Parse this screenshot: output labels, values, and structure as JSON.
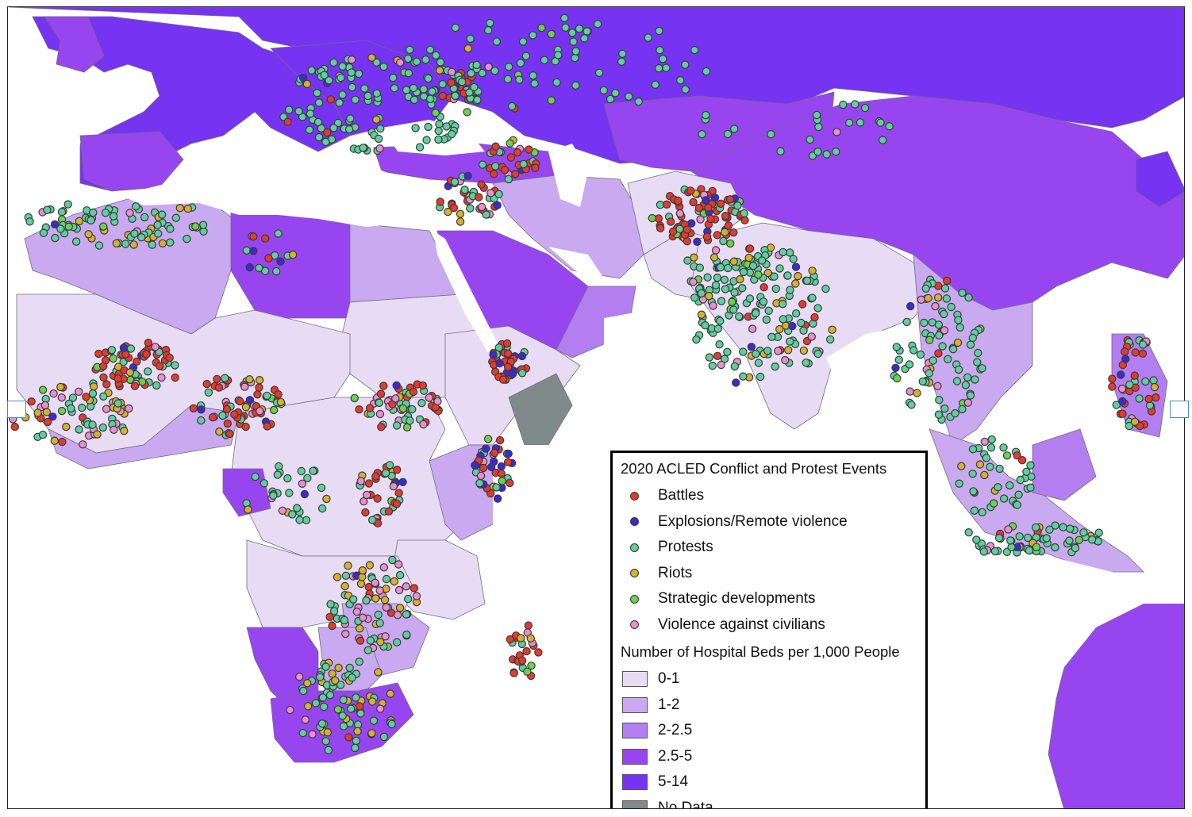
{
  "legend": {
    "events_title": "2020 ACLED Conflict and Protest Events",
    "events": [
      {
        "label": "Battles",
        "color": "#e53a2e"
      },
      {
        "label": "Explosions/Remote violence",
        "color": "#3a2bd1"
      },
      {
        "label": "Protests",
        "color": "#5fcf9e"
      },
      {
        "label": "Riots",
        "color": "#d6b12e"
      },
      {
        "label": "Strategic developments",
        "color": "#6bd24a"
      },
      {
        "label": "Violence against civilians",
        "color": "#e88fcf"
      }
    ],
    "beds_title": "Number of Hospital Beds per 1,000 People",
    "beds": [
      {
        "label": "0-1",
        "color": "#e8dcf4"
      },
      {
        "label": "1-2",
        "color": "#c9a9ef"
      },
      {
        "label": "2-2.5",
        "color": "#b27ef0"
      },
      {
        "label": "2.5-5",
        "color": "#9746ef"
      },
      {
        "label": "5-14",
        "color": "#7733f2"
      },
      {
        "label": "No Data",
        "color": "#7f8b8b"
      }
    ]
  }
}
